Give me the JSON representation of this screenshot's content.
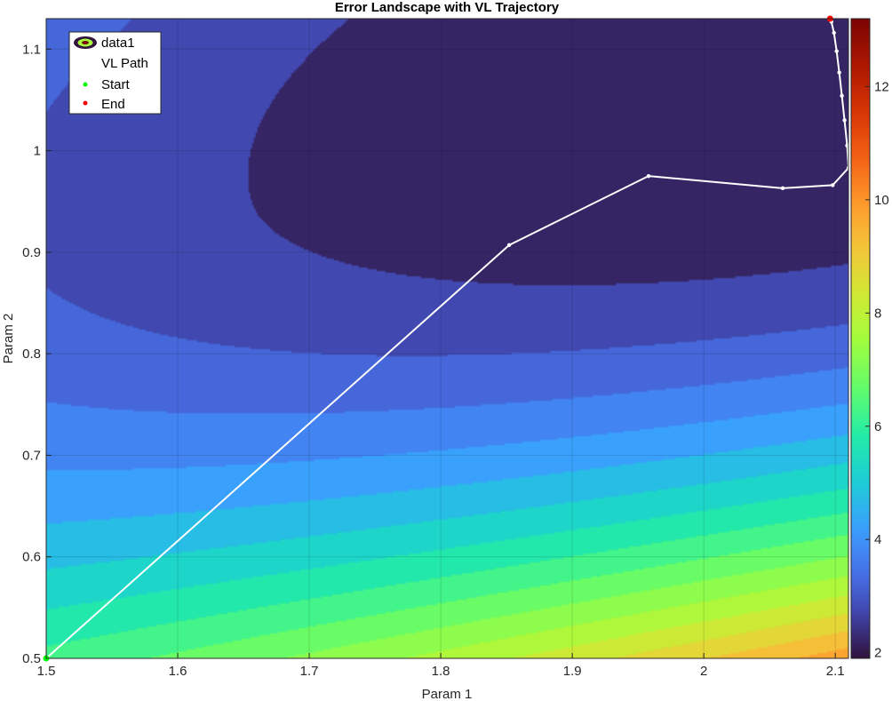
{
  "chart_data": {
    "type": "contourf",
    "title": "Error Landscape with VL Trajectory",
    "xlabel": "Param 1",
    "ylabel": "Param 2",
    "xlim": [
      1.5,
      2.11
    ],
    "ylim": [
      0.5,
      1.13
    ],
    "xticks": [
      "1.5",
      "1.6",
      "1.7",
      "1.8",
      "1.9",
      "2",
      "2.1"
    ],
    "xtick_values": [
      1.5,
      1.6,
      1.7,
      1.8,
      1.9,
      2.0,
      2.1
    ],
    "yticks": [
      "0.5",
      "0.6",
      "0.7",
      "0.8",
      "0.9",
      "1",
      "1.1"
    ],
    "ytick_values": [
      0.5,
      0.6,
      0.7,
      0.8,
      0.9,
      1.0,
      1.1
    ],
    "grid": true,
    "colormap": "turbo",
    "colorbar": {
      "range": [
        1.9,
        13.2
      ],
      "ticks": [
        "2",
        "4",
        "6",
        "8",
        "10",
        "12"
      ],
      "tick_values": [
        2,
        4,
        6,
        8,
        10,
        12
      ]
    },
    "contour_levels": [
      2.5,
      3.0,
      3.5,
      4.0,
      4.5,
      5.0,
      5.5,
      6.0,
      6.5,
      7.0,
      7.5,
      8.0,
      8.5,
      9.0,
      9.5,
      10.0,
      10.5,
      11.0,
      11.5,
      12.0,
      12.5
    ],
    "legend": {
      "location": "top-left",
      "entries": [
        "data1",
        "VL Path",
        "Start",
        "End"
      ]
    },
    "series": [
      {
        "name": "VL Path",
        "type": "line",
        "color": "#ffffff",
        "x": [
          1.5,
          1.852,
          1.958,
          2.06,
          2.098,
          2.11,
          2.109,
          2.107,
          2.105,
          2.103,
          2.101,
          2.099,
          2.097,
          2.096
        ],
        "y": [
          0.5,
          0.907,
          0.975,
          0.963,
          0.966,
          0.983,
          1.005,
          1.03,
          1.054,
          1.077,
          1.098,
          1.116,
          1.127,
          1.13
        ]
      },
      {
        "name": "Start",
        "type": "scatter",
        "color": "#00ff00",
        "x": [
          1.5
        ],
        "y": [
          0.5
        ]
      },
      {
        "name": "End",
        "type": "scatter",
        "color": "#ff0000",
        "x": [
          2.096
        ],
        "y": [
          1.13
        ]
      }
    ]
  }
}
